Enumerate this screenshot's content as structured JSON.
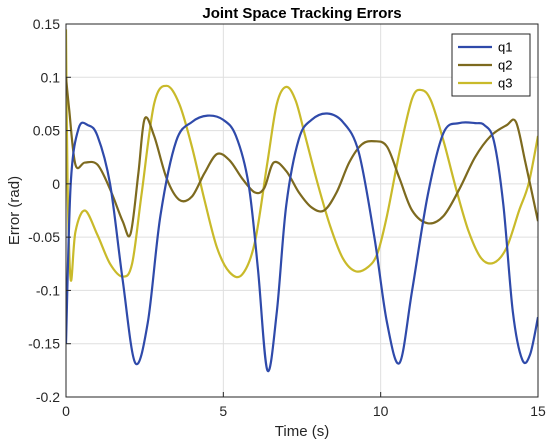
{
  "chart_data": {
    "type": "line",
    "title": "Joint Space Tracking Errors",
    "xlabel": "Time (s)",
    "ylabel": "Error (rad)",
    "xlim": [
      0,
      15
    ],
    "ylim": [
      -0.2,
      0.15
    ],
    "xticks": [
      0,
      5,
      10,
      15
    ],
    "xtick_labels": [
      "0",
      "5",
      "10",
      "15"
    ],
    "yticks": [
      -0.2,
      -0.15,
      -0.1,
      -0.05,
      0,
      0.05,
      0.1,
      0.15
    ],
    "ytick_labels": [
      "-0.2",
      "-0.15",
      "-0.1",
      "-0.05",
      "0",
      "0.05",
      "0.1",
      "0.15"
    ],
    "grid": true,
    "legend_position": "top-right",
    "series": [
      {
        "name": "q1",
        "color": "#2f4aaa",
        "x": [
          0,
          0.15,
          0.4,
          0.7,
          1.0,
          1.4,
          1.8,
          2.2,
          2.6,
          3.0,
          3.5,
          4.0,
          4.5,
          5.0,
          5.4,
          5.8,
          6.1,
          6.4,
          6.7,
          7.0,
          7.4,
          7.8,
          8.3,
          8.8,
          9.3,
          9.8,
          10.2,
          10.6,
          11.0,
          11.5,
          12.0,
          12.5,
          13.0,
          13.3,
          13.6,
          13.9,
          14.2,
          14.5,
          14.75,
          15.0
        ],
        "y": [
          -0.15,
          0.0,
          0.052,
          0.055,
          0.045,
          0.0,
          -0.09,
          -0.168,
          -0.13,
          -0.03,
          0.04,
          0.058,
          0.064,
          0.06,
          0.045,
          0.0,
          -0.08,
          -0.175,
          -0.12,
          -0.02,
          0.042,
          0.06,
          0.066,
          0.058,
          0.03,
          -0.05,
          -0.13,
          -0.168,
          -0.1,
          -0.01,
          0.048,
          0.057,
          0.057,
          0.055,
          0.04,
          -0.02,
          -0.12,
          -0.165,
          -0.16,
          -0.125
        ]
      },
      {
        "name": "q2",
        "color": "#7d6a1f",
        "x": [
          0,
          0.1,
          0.3,
          0.6,
          1.0,
          1.4,
          1.8,
          2.05,
          2.3,
          2.5,
          2.8,
          3.2,
          3.6,
          4.0,
          4.4,
          4.8,
          5.2,
          5.6,
          6.0,
          6.3,
          6.6,
          7.0,
          7.4,
          7.8,
          8.2,
          8.6,
          9.0,
          9.4,
          9.8,
          10.2,
          10.6,
          11.0,
          11.5,
          12.0,
          12.5,
          13.0,
          13.5,
          14.0,
          14.3,
          14.6,
          15.0
        ],
        "y": [
          0.1,
          0.07,
          0.018,
          0.02,
          0.018,
          -0.005,
          -0.035,
          -0.047,
          0.01,
          0.061,
          0.045,
          0.005,
          -0.015,
          -0.012,
          0.01,
          0.028,
          0.022,
          0.005,
          -0.008,
          -0.004,
          0.02,
          0.012,
          -0.008,
          -0.022,
          -0.025,
          -0.008,
          0.02,
          0.037,
          0.04,
          0.035,
          0.005,
          -0.025,
          -0.037,
          -0.03,
          -0.005,
          0.025,
          0.045,
          0.055,
          0.058,
          0.02,
          -0.035
        ]
      },
      {
        "name": "q3",
        "color": "#c9ba2a",
        "x": [
          0,
          0.05,
          0.15,
          0.3,
          0.6,
          1.0,
          1.4,
          1.8,
          2.1,
          2.4,
          2.8,
          3.2,
          3.6,
          4.0,
          4.4,
          4.8,
          5.2,
          5.6,
          6.0,
          6.4,
          6.7,
          7.0,
          7.3,
          7.6,
          8.0,
          8.4,
          8.8,
          9.2,
          9.6,
          9.9,
          10.2,
          10.6,
          11.0,
          11.3,
          11.6,
          12.0,
          12.4,
          12.8,
          13.2,
          13.6,
          14.0,
          14.4,
          14.7,
          15.0
        ],
        "y": [
          0.145,
          0.0,
          -0.09,
          -0.045,
          -0.025,
          -0.048,
          -0.075,
          -0.087,
          -0.075,
          -0.01,
          0.075,
          0.092,
          0.075,
          0.035,
          -0.015,
          -0.06,
          -0.083,
          -0.085,
          -0.055,
          0.02,
          0.075,
          0.091,
          0.078,
          0.045,
          0.0,
          -0.04,
          -0.07,
          -0.082,
          -0.078,
          -0.065,
          -0.03,
          0.03,
          0.08,
          0.088,
          0.078,
          0.04,
          -0.005,
          -0.045,
          -0.07,
          -0.074,
          -0.06,
          -0.025,
          0.0,
          0.045
        ]
      }
    ]
  }
}
